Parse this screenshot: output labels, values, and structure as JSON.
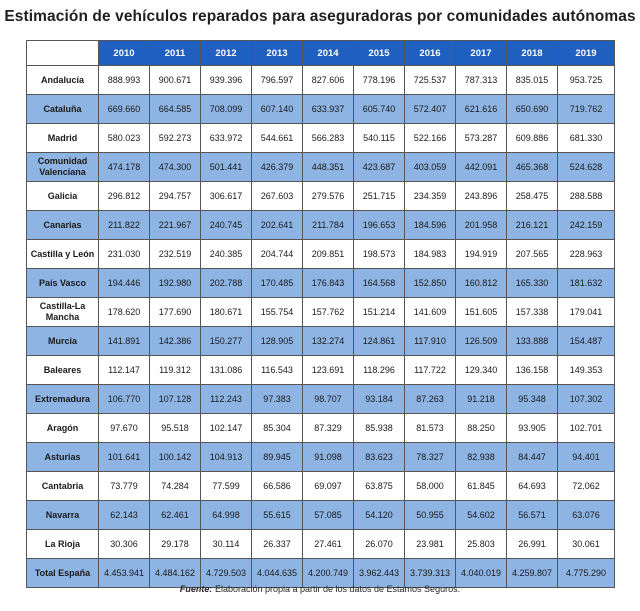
{
  "title": "Estimación de vehículos reparados para aseguradoras por comunidades autónomas",
  "columns": [
    "2010",
    "2011",
    "2012",
    "2013",
    "2014",
    "2015",
    "2016",
    "2017",
    "2018",
    "2019"
  ],
  "rows": [
    {
      "region": "Andalucía",
      "values": [
        "888.993",
        "900.671",
        "939.396",
        "796.597",
        "827.606",
        "778.196",
        "725.537",
        "787.313",
        "835.015",
        "953.725"
      ]
    },
    {
      "region": "Cataluña",
      "values": [
        "669.660",
        "664.585",
        "708.099",
        "607.140",
        "633.937",
        "605.740",
        "572.407",
        "621.616",
        "650.690",
        "719.762"
      ]
    },
    {
      "region": "Madrid",
      "values": [
        "580.023",
        "592.273",
        "633.972",
        "544.661",
        "566.283",
        "540.115",
        "522.166",
        "573.287",
        "609.886",
        "681.330"
      ]
    },
    {
      "region": "Comunidad Valenciana",
      "values": [
        "474.178",
        "474.300",
        "501.441",
        "426.379",
        "448.351",
        "423.687",
        "403.059",
        "442.091",
        "465.368",
        "524.628"
      ]
    },
    {
      "region": "Galicia",
      "values": [
        "296.812",
        "294.757",
        "306.617",
        "267.603",
        "279.576",
        "251.715",
        "234.359",
        "243.896",
        "258.475",
        "288.588"
      ]
    },
    {
      "region": "Canarias",
      "values": [
        "211.822",
        "221.967",
        "240.745",
        "202.641",
        "211.784",
        "196.653",
        "184.596",
        "201.958",
        "216.121",
        "242.159"
      ]
    },
    {
      "region": "Castilla y León",
      "values": [
        "231.030",
        "232.519",
        "240.385",
        "204.744",
        "209.851",
        "198.573",
        "184.983",
        "194.919",
        "207.565",
        "228.963"
      ]
    },
    {
      "region": "País Vasco",
      "values": [
        "194.446",
        "192.980",
        "202.788",
        "170.485",
        "176.843",
        "164.568",
        "152.850",
        "160.812",
        "165.330",
        "181.632"
      ]
    },
    {
      "region": "Castilla-La Mancha",
      "values": [
        "178.620",
        "177.690",
        "180.671",
        "155.754",
        "157.762",
        "151.214",
        "141.609",
        "151.605",
        "157.338",
        "179.041"
      ]
    },
    {
      "region": "Murcia",
      "values": [
        "141.891",
        "142.386",
        "150.277",
        "128.905",
        "132.274",
        "124.861",
        "117.910",
        "126.509",
        "133.888",
        "154.487"
      ]
    },
    {
      "region": "Baleares",
      "values": [
        "112.147",
        "119.312",
        "131.086",
        "116.543",
        "123.691",
        "118.296",
        "117.722",
        "129.340",
        "136.158",
        "149.353"
      ]
    },
    {
      "region": "Extremadura",
      "values": [
        "106.770",
        "107.128",
        "112.243",
        "97.383",
        "98.707",
        "93.184",
        "87.263",
        "91.218",
        "95.348",
        "107.302"
      ]
    },
    {
      "region": "Aragón",
      "values": [
        "97.670",
        "95.518",
        "102.147",
        "85.304",
        "87.329",
        "85.938",
        "81.573",
        "88.250",
        "93.905",
        "102.701"
      ]
    },
    {
      "region": "Asturias",
      "values": [
        "101.641",
        "100.142",
        "104.913",
        "89.945",
        "91.098",
        "83.623",
        "78.327",
        "82.938",
        "84.447",
        "94.401"
      ]
    },
    {
      "region": "Cantabria",
      "values": [
        "73.779",
        "74.284",
        "77.599",
        "66.586",
        "69.097",
        "63.875",
        "58.000",
        "61.845",
        "64.693",
        "72.062"
      ]
    },
    {
      "region": "Navarra",
      "values": [
        "62.143",
        "62.461",
        "64.998",
        "55.615",
        "57.085",
        "54.120",
        "50.955",
        "54.602",
        "56.571",
        "63.076"
      ]
    },
    {
      "region": "La Rioja",
      "values": [
        "30.306",
        "29.178",
        "30.114",
        "26.337",
        "27.461",
        "26.070",
        "23.981",
        "25.803",
        "26.991",
        "30.061"
      ]
    }
  ],
  "total": {
    "region": "Total España",
    "values": [
      "4.453.941",
      "4.484.162",
      "4.729.503",
      "4.044.635",
      "4.200.749",
      "3.962.443",
      "3.739.313",
      "4.040.019",
      "4.259.807",
      "4.775.290"
    ]
  },
  "source": {
    "label": "Fuente:",
    "text": "Elaboración propia a partir de los datos de Estamos Seguros."
  },
  "colors": {
    "header": "#1f5fbf",
    "stripe": "#8eb4e3"
  }
}
